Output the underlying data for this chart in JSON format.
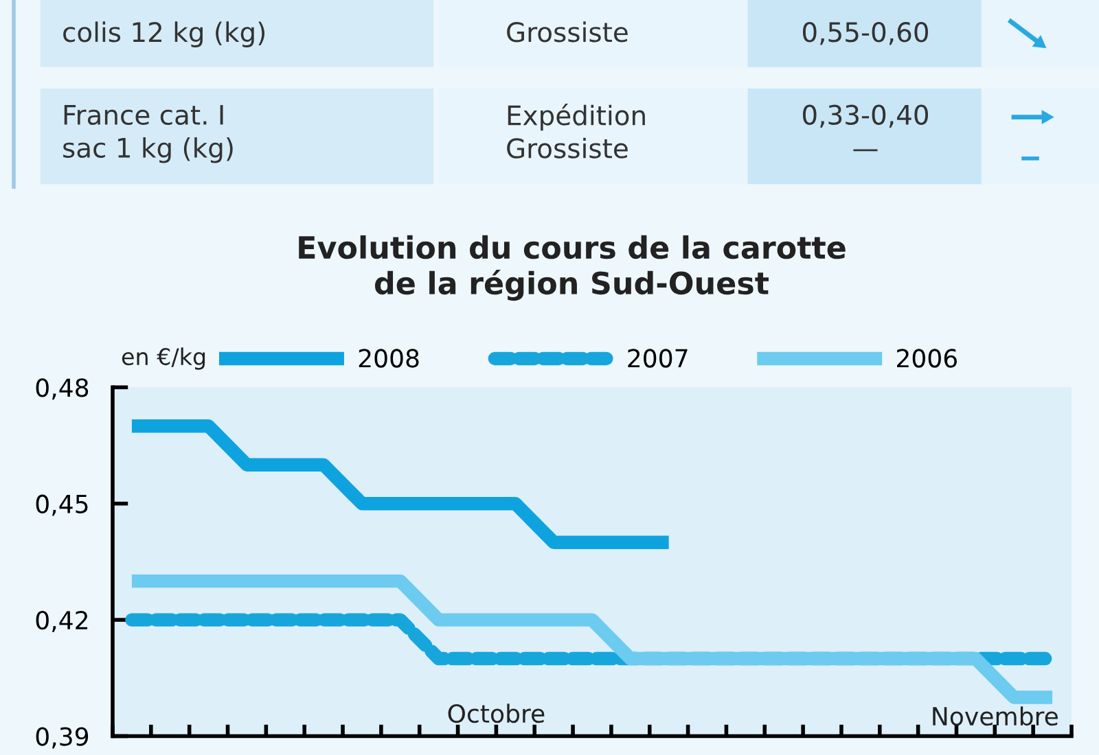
{
  "chart_data": {
    "type": "line",
    "title": "Evolution du cours de la carotte\nde la région Sud-Ouest",
    "ylabel": "en €/kg",
    "categories": [
      null,
      null,
      null,
      null,
      null,
      null,
      null,
      null,
      null,
      null,
      null,
      null,
      null,
      null,
      null,
      null,
      null,
      null,
      null,
      null,
      null,
      null,
      null,
      null,
      null
    ],
    "series": [
      {
        "name": "2008",
        "color": "#0ea3df",
        "line_style": "solid",
        "values": [
          0.47,
          0.47,
          0.47,
          0.46,
          0.46,
          0.46,
          0.45,
          0.45,
          0.45,
          0.45,
          0.45,
          0.44,
          0.44,
          0.44,
          0.44,
          null,
          null,
          null,
          null,
          null,
          null,
          null,
          null,
          null,
          null
        ]
      },
      {
        "name": "2007",
        "color": "#17a6dc",
        "line_style": "dashed",
        "values": [
          0.42,
          0.42,
          0.42,
          0.42,
          0.42,
          0.42,
          0.42,
          0.42,
          0.41,
          0.41,
          0.41,
          0.41,
          0.41,
          0.41,
          0.41,
          0.41,
          0.41,
          0.41,
          0.41,
          0.41,
          0.41,
          0.41,
          0.41,
          0.41,
          0.41
        ]
      },
      {
        "name": "2006",
        "color": "#6ccbef",
        "line_style": "solid",
        "values": [
          0.43,
          0.43,
          0.43,
          0.43,
          0.43,
          0.43,
          0.43,
          0.43,
          0.42,
          0.42,
          0.42,
          0.42,
          0.42,
          0.41,
          0.41,
          0.41,
          0.41,
          0.41,
          0.41,
          0.41,
          0.41,
          0.41,
          0.41,
          0.4,
          0.4
        ]
      }
    ],
    "ylim": [
      0.39,
      0.48
    ],
    "yticks": [
      {
        "value": 0.39,
        "label": "0,39"
      },
      {
        "value": 0.42,
        "label": "0,42"
      },
      {
        "value": 0.45,
        "label": "0,45"
      },
      {
        "value": 0.48,
        "label": "0,48"
      }
    ],
    "tick_labels": "y",
    "grid": false,
    "legend": "top",
    "annotations": [
      "Octobre",
      "Novembre",
      "colis 12 kg (kg)",
      "Grossiste",
      "0,55-0,60",
      "France cat. I\nsac 1 kg (kg)",
      "Expédition\nGrossiste",
      "0,33-0,40\n—"
    ]
  }
}
